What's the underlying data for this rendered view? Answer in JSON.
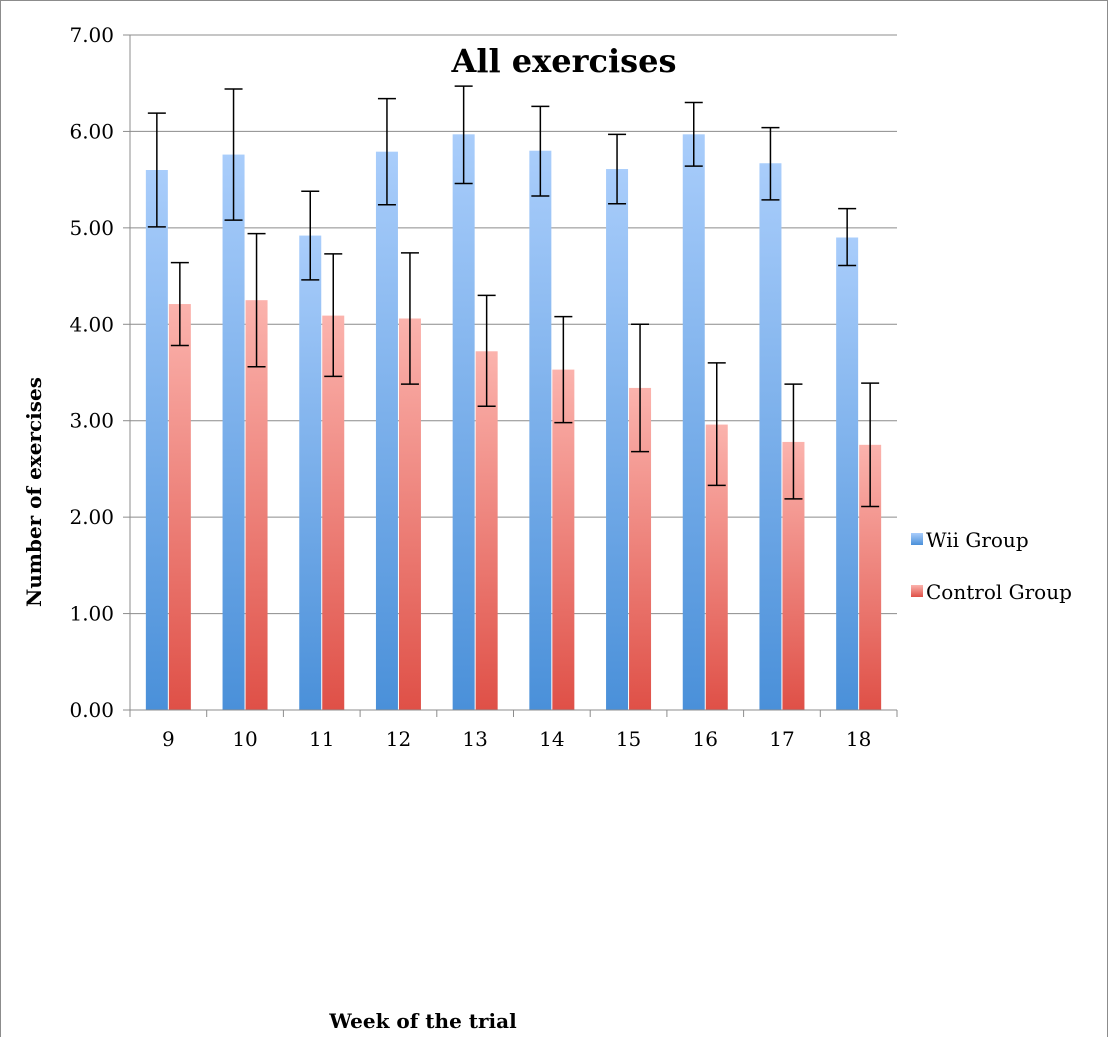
{
  "chart_data": {
    "type": "bar",
    "title": "All exercises",
    "xlabel": "Week of the trial",
    "ylabel": "Number of exercises",
    "categories": [
      "9",
      "10",
      "11",
      "12",
      "13",
      "14",
      "15",
      "16",
      "17",
      "18"
    ],
    "ylim": [
      0,
      7
    ],
    "yticks": [
      "0.00",
      "1.00",
      "2.00",
      "3.00",
      "4.00",
      "5.00",
      "6.00",
      "7.00"
    ],
    "grid": true,
    "legend_position": "right",
    "series": [
      {
        "name": "Wii Group",
        "color": "#5b9bd5",
        "values": [
          5.6,
          5.76,
          4.92,
          5.79,
          5.97,
          5.8,
          5.61,
          5.97,
          5.67,
          4.9
        ],
        "error_low": [
          5.01,
          5.08,
          4.46,
          5.24,
          5.46,
          5.33,
          5.25,
          5.64,
          5.29,
          4.61
        ],
        "error_high": [
          6.19,
          6.44,
          5.38,
          6.34,
          6.47,
          6.26,
          5.97,
          6.3,
          6.04,
          5.2
        ]
      },
      {
        "name": "Control Group",
        "color": "#e8665e",
        "values": [
          4.21,
          4.25,
          4.09,
          4.06,
          3.72,
          3.53,
          3.34,
          2.96,
          2.78,
          2.75
        ],
        "error_low": [
          3.78,
          3.56,
          3.46,
          3.38,
          3.15,
          2.98,
          2.68,
          2.33,
          2.19,
          2.11
        ],
        "error_high": [
          4.64,
          4.94,
          4.73,
          4.74,
          4.3,
          4.08,
          4.0,
          3.6,
          3.38,
          3.39
        ]
      }
    ]
  }
}
